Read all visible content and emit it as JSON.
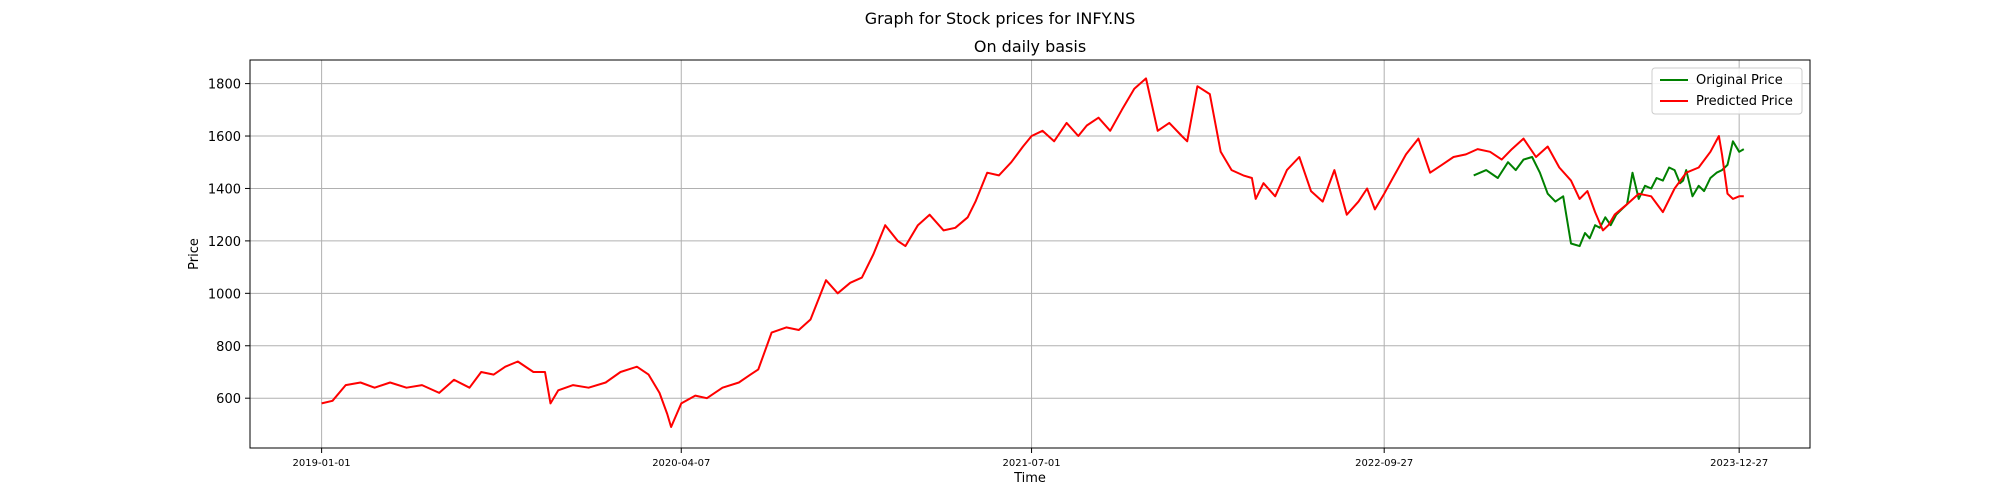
{
  "chart_data": {
    "type": "line",
    "suptitle": "Graph for Stock prices for INFY.NS",
    "title": "On daily basis",
    "xlabel": "Time",
    "ylabel": "Price",
    "xlim": [
      "2018-10-01",
      "2024-03-27"
    ],
    "ylim": [
      410,
      1890
    ],
    "xticks": [
      "2019-01-01",
      "2020-04-07",
      "2021-07-01",
      "2022-09-27",
      "2023-12-27"
    ],
    "yticks": [
      600,
      800,
      1000,
      1200,
      1400,
      1600,
      1800
    ],
    "grid": true,
    "legend": {
      "placement": "top-right",
      "entries": [
        "Original Price",
        "Predicted Price"
      ]
    },
    "colors": {
      "Original Price": "#008000",
      "Predicted Price": "#ff0000"
    },
    "series": [
      {
        "name": "Original Price",
        "x": [
          "2023-01-20",
          "2023-02-05",
          "2023-02-20",
          "2023-03-05",
          "2023-03-15",
          "2023-03-25",
          "2023-04-05",
          "2023-04-15",
          "2023-04-25",
          "2023-05-05",
          "2023-05-15",
          "2023-05-25",
          "2023-06-05",
          "2023-06-12",
          "2023-06-18",
          "2023-06-25",
          "2023-07-01",
          "2023-07-08",
          "2023-07-15",
          "2023-07-22",
          "2023-07-29",
          "2023-08-05",
          "2023-08-12",
          "2023-08-20",
          "2023-08-28",
          "2023-09-05",
          "2023-09-12",
          "2023-09-20",
          "2023-09-28",
          "2023-10-05",
          "2023-10-12",
          "2023-10-16",
          "2023-10-20",
          "2023-10-28",
          "2023-11-05",
          "2023-11-12",
          "2023-11-20",
          "2023-11-28",
          "2023-12-05",
          "2023-12-12",
          "2023-12-19",
          "2023-12-27",
          "2024-01-02"
        ],
        "y": [
          1450,
          1470,
          1440,
          1500,
          1470,
          1510,
          1520,
          1460,
          1380,
          1350,
          1370,
          1190,
          1180,
          1230,
          1210,
          1260,
          1250,
          1290,
          1260,
          1300,
          1320,
          1340,
          1460,
          1360,
          1410,
          1400,
          1440,
          1430,
          1480,
          1470,
          1420,
          1430,
          1470,
          1370,
          1410,
          1390,
          1440,
          1460,
          1470,
          1490,
          1580,
          1540,
          1550
        ]
      },
      {
        "name": "Predicted Price",
        "x": [
          "2019-01-01",
          "2019-01-15",
          "2019-02-01",
          "2019-02-20",
          "2019-03-10",
          "2019-03-30",
          "2019-04-20",
          "2019-05-10",
          "2019-06-01",
          "2019-06-20",
          "2019-07-10",
          "2019-07-25",
          "2019-08-10",
          "2019-08-25",
          "2019-09-10",
          "2019-09-30",
          "2019-10-15",
          "2019-10-22",
          "2019-11-01",
          "2019-11-20",
          "2019-12-10",
          "2020-01-01",
          "2020-01-20",
          "2020-02-10",
          "2020-02-25",
          "2020-03-10",
          "2020-03-20",
          "2020-03-25",
          "2020-04-07",
          "2020-04-25",
          "2020-05-10",
          "2020-05-30",
          "2020-06-20",
          "2020-07-05",
          "2020-07-15",
          "2020-08-01",
          "2020-08-20",
          "2020-09-05",
          "2020-09-20",
          "2020-10-10",
          "2020-10-25",
          "2020-11-10",
          "2020-11-25",
          "2020-12-10",
          "2020-12-25",
          "2021-01-10",
          "2021-01-20",
          "2021-02-05",
          "2021-02-20",
          "2021-03-10",
          "2021-03-25",
          "2021-04-10",
          "2021-04-20",
          "2021-05-05",
          "2021-05-20",
          "2021-06-05",
          "2021-06-20",
          "2021-07-01",
          "2021-07-15",
          "2021-07-30",
          "2021-08-15",
          "2021-08-30",
          "2021-09-10",
          "2021-09-25",
          "2021-10-10",
          "2021-10-25",
          "2021-11-10",
          "2021-11-25",
          "2021-12-10",
          "2021-12-25",
          "2022-01-10",
          "2022-01-17",
          "2022-01-30",
          "2022-02-15",
          "2022-03-01",
          "2022-03-15",
          "2022-03-30",
          "2022-04-10",
          "2022-04-15",
          "2022-04-25",
          "2022-05-10",
          "2022-05-25",
          "2022-06-10",
          "2022-06-25",
          "2022-07-10",
          "2022-07-25",
          "2022-08-10",
          "2022-08-25",
          "2022-09-05",
          "2022-09-15",
          "2022-09-27",
          "2022-10-10",
          "2022-10-25",
          "2022-11-10",
          "2022-11-25",
          "2022-12-10",
          "2022-12-25",
          "2023-01-10",
          "2023-01-25",
          "2023-02-10",
          "2023-02-25",
          "2023-03-10",
          "2023-03-25",
          "2023-04-10",
          "2023-04-25",
          "2023-05-10",
          "2023-05-25",
          "2023-06-05",
          "2023-06-15",
          "2023-06-25",
          "2023-07-05",
          "2023-07-12",
          "2023-07-20",
          "2023-08-05",
          "2023-08-20",
          "2023-09-05",
          "2023-09-20",
          "2023-10-05",
          "2023-10-20",
          "2023-11-05",
          "2023-11-20",
          "2023-12-01",
          "2023-12-05",
          "2023-12-12",
          "2023-12-19",
          "2023-12-27",
          "2024-01-02"
        ],
        "y": [
          580,
          590,
          650,
          660,
          640,
          660,
          640,
          650,
          620,
          670,
          640,
          700,
          690,
          720,
          740,
          700,
          700,
          580,
          630,
          650,
          640,
          660,
          700,
          720,
          690,
          620,
          540,
          490,
          580,
          610,
          600,
          640,
          660,
          690,
          710,
          850,
          870,
          860,
          900,
          1050,
          1000,
          1040,
          1060,
          1150,
          1260,
          1200,
          1180,
          1260,
          1300,
          1240,
          1250,
          1290,
          1350,
          1460,
          1450,
          1500,
          1560,
          1600,
          1620,
          1580,
          1650,
          1600,
          1640,
          1670,
          1620,
          1700,
          1780,
          1820,
          1620,
          1650,
          1600,
          1580,
          1790,
          1760,
          1540,
          1470,
          1450,
          1440,
          1360,
          1420,
          1370,
          1470,
          1520,
          1390,
          1350,
          1470,
          1300,
          1350,
          1400,
          1320,
          1380,
          1450,
          1530,
          1590,
          1460,
          1490,
          1520,
          1530,
          1550,
          1540,
          1510,
          1550,
          1590,
          1520,
          1560,
          1480,
          1430,
          1360,
          1390,
          1310,
          1240,
          1260,
          1300,
          1340,
          1380,
          1370,
          1310,
          1400,
          1460,
          1480,
          1540,
          1600,
          1530,
          1380,
          1360,
          1370,
          1370
        ]
      }
    ]
  }
}
